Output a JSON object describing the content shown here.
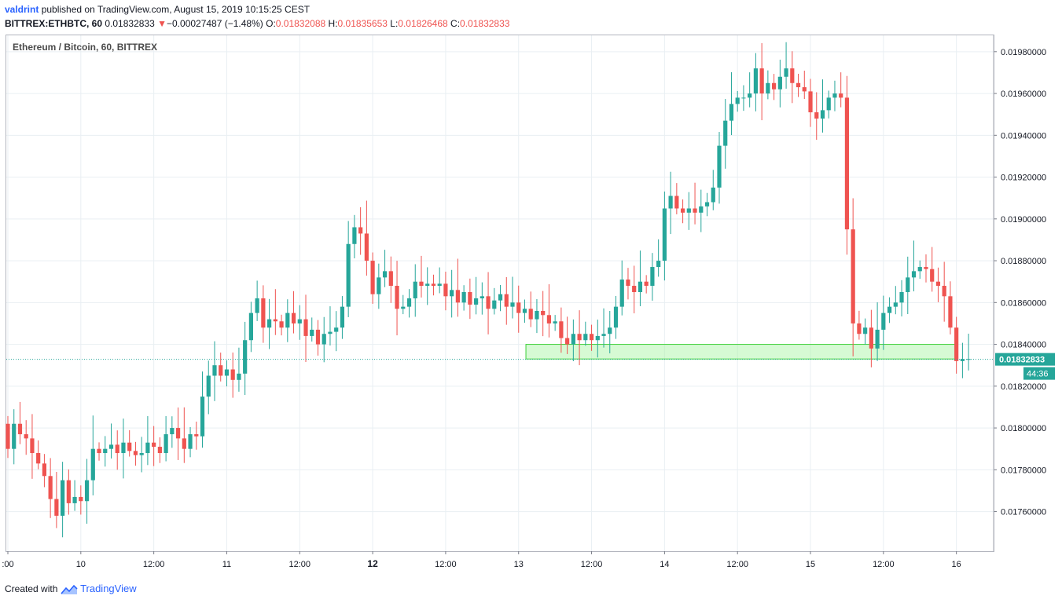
{
  "header": {
    "author": "valdrint",
    "published_text": "published on TradingView.com, August 15, 2019 10:15:25 CEST",
    "symbol": "BITTREX:ETHBTC, 60",
    "last": "0.01832833",
    "change": "−0.00027487 (−1.48%)",
    "o_label": "O:",
    "o_value": "0.01832088",
    "h_label": "H:",
    "h_value": "0.01835653",
    "l_label": "L:",
    "l_value": "0.01826468",
    "c_label": "C:",
    "c_value": "0.01832833"
  },
  "footer": {
    "created_with": "Created with",
    "brand": "TradingView"
  },
  "colors": {
    "up": "#26a69a",
    "down": "#ef5350",
    "zone": "#a5f5a0",
    "price_line": "#26a69a"
  },
  "chart_data": {
    "type": "candlestick",
    "title": "Ethereum / Bitcoin, 60, BITTREX",
    "ylim": [
      0.01745,
      0.01985
    ],
    "y_ticks": [
      "0.01760000",
      "0.01780000",
      "0.01800000",
      "0.01820000",
      "0.01840000",
      "0.01860000",
      "0.01880000",
      "0.01900000",
      "0.01920000",
      "0.01940000",
      "0.01960000",
      "0.01980000"
    ],
    "x_ticks": [
      {
        "h": 0,
        "label": ":00"
      },
      {
        "h": 12,
        "label": "10"
      },
      {
        "h": 24,
        "label": "12:00"
      },
      {
        "h": 36,
        "label": "11"
      },
      {
        "h": 48,
        "label": "12:00"
      },
      {
        "h": 60,
        "label": "12"
      },
      {
        "h": 72,
        "label": "12:00"
      },
      {
        "h": 84,
        "label": "13"
      },
      {
        "h": 96,
        "label": "12:00"
      },
      {
        "h": 108,
        "label": "14"
      },
      {
        "h": 120,
        "label": "12:00"
      },
      {
        "h": 132,
        "label": "15"
      },
      {
        "h": 144,
        "label": "12:00"
      },
      {
        "h": 156,
        "label": "16"
      }
    ],
    "bold_ticks": [
      "12"
    ],
    "last_price": "0.01832833",
    "countdown": "44:36",
    "support_zone": {
      "from_h": 85.2,
      "to_h": 156,
      "low": 0.01833,
      "high": 0.0184
    },
    "closes": [
      0.0179,
      0.01802,
      0.01797,
      0.01795,
      0.01788,
      0.01783,
      0.01777,
      0.01766,
      0.01758,
      0.01775,
      0.01764,
      0.01767,
      0.01765,
      0.01775,
      0.0179,
      0.01788,
      0.0179,
      0.01792,
      0.01788,
      0.01793,
      0.01789,
      0.01787,
      0.01788,
      0.01793,
      0.01791,
      0.01788,
      0.01797,
      0.018,
      0.01795,
      0.0179,
      0.01797,
      0.01796,
      0.01815,
      0.01825,
      0.0183,
      0.01825,
      0.01828,
      0.01823,
      0.01826,
      0.01842,
      0.01855,
      0.01862,
      0.01848,
      0.01852,
      0.01851,
      0.01848,
      0.01855,
      0.0185,
      0.01852,
      0.01844,
      0.01847,
      0.0184,
      0.01845,
      0.01846,
      0.01848,
      0.01858,
      0.01888,
      0.01896,
      0.01893,
      0.0188,
      0.01864,
      0.01872,
      0.01875,
      0.01868,
      0.01857,
      0.01858,
      0.01862,
      0.0187,
      0.01868,
      0.01869,
      0.01868,
      0.01869,
      0.01863,
      0.01866,
      0.0186,
      0.01865,
      0.01859,
      0.01862,
      0.01863,
      0.01857,
      0.01861,
      0.01864,
      0.01858,
      0.0186,
      0.01855,
      0.01857,
      0.01852,
      0.01856,
      0.01854,
      0.0185,
      0.01851,
      0.01843,
      0.0184,
      0.01845,
      0.01842,
      0.01845,
      0.01842,
      0.01844,
      0.01845,
      0.01848,
      0.01858,
      0.01871,
      0.01868,
      0.01865,
      0.0187,
      0.01868,
      0.01877,
      0.0188,
      0.01905,
      0.01911,
      0.01905,
      0.01903,
      0.01905,
      0.01903,
      0.01906,
      0.01908,
      0.01915,
      0.01935,
      0.01947,
      0.01955,
      0.01958,
      0.01958,
      0.0196,
      0.01972,
      0.0196,
      0.01965,
      0.01962,
      0.01968,
      0.01972,
      0.01965,
      0.01963,
      0.01961,
      0.01951,
      0.01948,
      0.01952,
      0.01958,
      0.0196,
      0.01958,
      0.01895,
      0.0185,
      0.01845,
      0.01848,
      0.01838,
      0.01847,
      0.01855,
      0.01858,
      0.0186,
      0.01865,
      0.01872,
      0.01875,
      0.01877,
      0.01876,
      0.0187,
      0.01868,
      0.01863,
      0.01848,
      0.01832,
      0.01833,
      0.01833
    ]
  }
}
